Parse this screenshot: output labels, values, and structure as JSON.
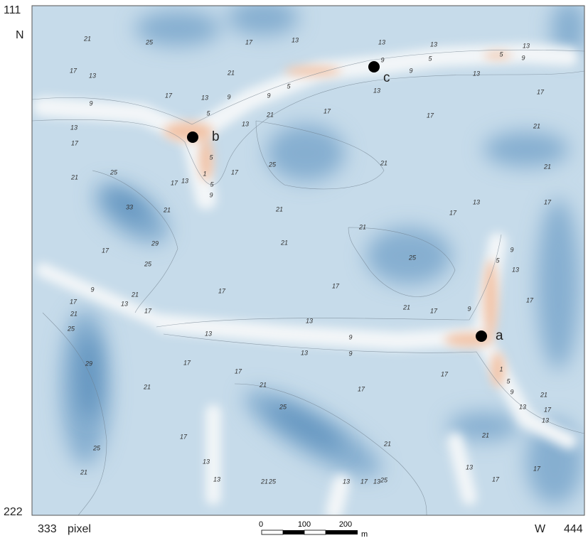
{
  "map": {
    "corner_labels": {
      "top_left": 111,
      "bottom_left": 222,
      "bottom_x_start": 333,
      "bottom_x_end": 444
    },
    "north": "N",
    "west": "W",
    "unit": "pixel",
    "scale_bar": {
      "ticks": [
        0,
        100,
        200
      ],
      "unit": "m"
    },
    "points": [
      "a",
      "b",
      "c"
    ],
    "contour_labels": [
      21,
      25,
      17,
      13,
      13,
      13,
      13,
      17,
      13,
      21,
      9,
      5,
      5,
      9,
      9,
      13,
      5,
      9,
      9,
      13,
      17,
      13,
      9,
      5,
      21,
      17,
      17,
      17,
      13,
      17,
      13,
      21,
      5,
      1,
      5,
      9,
      13,
      17,
      17,
      25,
      21,
      21,
      21,
      25,
      33,
      21,
      21,
      21,
      21,
      13,
      17,
      17,
      17,
      29,
      25,
      25,
      5,
      9,
      13,
      9,
      17,
      21,
      13,
      17,
      17,
      17,
      17,
      21,
      25,
      21,
      17,
      9,
      13,
      13,
      9,
      13,
      9,
      29,
      17,
      17,
      17,
      1,
      5,
      9,
      13,
      21,
      21,
      17,
      21,
      17,
      13,
      25,
      21,
      21,
      17,
      25,
      13,
      13,
      17,
      21,
      13,
      17,
      21,
      25,
      13,
      17,
      13,
      25
    ]
  }
}
